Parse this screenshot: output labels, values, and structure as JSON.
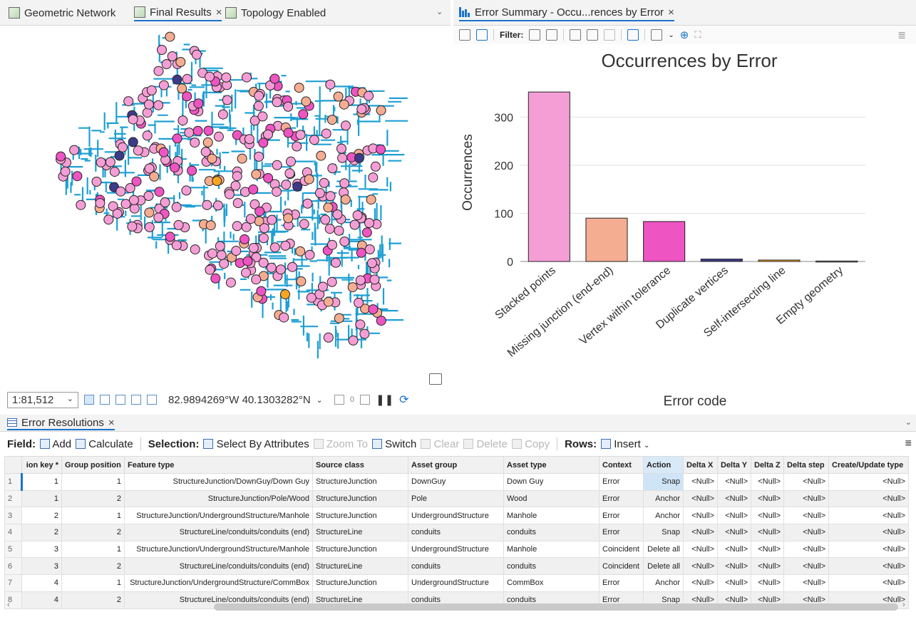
{
  "map_tabs": [
    {
      "label": "Geometric Network"
    },
    {
      "label": "Final Results",
      "close": "×"
    },
    {
      "label": "Topology Enabled"
    }
  ],
  "chart_tab": {
    "label": "Error Summary - Occu...rences by Error",
    "close": "×"
  },
  "chart_toolbar": {
    "filter_label": "Filter:"
  },
  "map_status": {
    "scale": "1:81,512",
    "coordinates": "82.9894269°W 40.1303282°N",
    "count": "0"
  },
  "colors": {
    "network": "#1ea0d4",
    "stacked_points": "#f59ed6",
    "missing_junction": "#f5ad92",
    "vertex_within_tolerance": "#ee54c2",
    "duplicate_vertices": "#3e3a8a",
    "self_intersecting": "#f6a623",
    "empty_geometry": "#999999"
  },
  "chart_data": {
    "type": "bar",
    "title": "Occurrences by Error",
    "xlabel": "Error code",
    "ylabel": "Occurrences",
    "categories": [
      "Stacked points",
      "Missing junction (end-end)",
      "Vertex within tolerance",
      "Duplicate vertices",
      "Self-intersecting line",
      "Empty geometry"
    ],
    "values": [
      352,
      90,
      83,
      5,
      3,
      1
    ],
    "yticks": [
      0,
      100,
      200,
      300
    ],
    "ylim": [
      0,
      370
    ],
    "grid": true
  },
  "table_tab": {
    "label": "Error Resolutions",
    "close": "×"
  },
  "table_toolbar": {
    "field_label": "Field:",
    "add": "Add",
    "calculate": "Calculate",
    "selection_label": "Selection:",
    "select_by_attributes": "Select By Attributes",
    "zoom_to": "Zoom To",
    "switch": "Switch",
    "clear": "Clear",
    "delete": "Delete",
    "copy": "Copy",
    "rows_label": "Rows:",
    "insert": "Insert"
  },
  "table": {
    "columns": [
      "ion key *",
      "Group position",
      "Feature type",
      "Source class",
      "Asset group",
      "Asset type",
      "Context",
      "Action",
      "Delta X",
      "Delta Y",
      "Delta Z",
      "Delta step",
      "Create/Update type"
    ],
    "rows": [
      [
        "1",
        "1",
        "1",
        "StructureJunction/DownGuy/Down Guy",
        "StructureJunction",
        "DownGuy",
        "Down Guy",
        "Error",
        "Snap",
        "<Null>",
        "<Null>",
        "<Null>",
        "<Null>",
        "<Null>"
      ],
      [
        "2",
        "1",
        "2",
        "StructureJunction/Pole/Wood",
        "StructureJunction",
        "Pole",
        "Wood",
        "Error",
        "Anchor",
        "<Null>",
        "<Null>",
        "<Null>",
        "<Null>",
        "<Null>"
      ],
      [
        "3",
        "2",
        "1",
        "StructureJunction/UndergroundStructure/Manhole",
        "StructureJunction",
        "UndergroundStructure",
        "Manhole",
        "Error",
        "Anchor",
        "<Null>",
        "<Null>",
        "<Null>",
        "<Null>",
        "<Null>"
      ],
      [
        "4",
        "2",
        "2",
        "StructureLine/conduits/conduits (end)",
        "StructureLine",
        "conduits",
        "conduits",
        "Error",
        "Snap",
        "<Null>",
        "<Null>",
        "<Null>",
        "<Null>",
        "<Null>"
      ],
      [
        "5",
        "3",
        "1",
        "StructureJunction/UndergroundStructure/Manhole",
        "StructureJunction",
        "UndergroundStructure",
        "Manhole",
        "Coincident",
        "Delete all",
        "<Null>",
        "<Null>",
        "<Null>",
        "<Null>",
        "<Null>"
      ],
      [
        "6",
        "3",
        "2",
        "StructureLine/conduits/conduits (end)",
        "StructureLine",
        "conduits",
        "conduits",
        "Coincident",
        "Delete all",
        "<Null>",
        "<Null>",
        "<Null>",
        "<Null>",
        "<Null>"
      ],
      [
        "7",
        "4",
        "1",
        "StructureJunction/UndergroundStructure/CommBox",
        "StructureJunction",
        "UndergroundStructure",
        "CommBox",
        "Error",
        "Anchor",
        "<Null>",
        "<Null>",
        "<Null>",
        "<Null>",
        "<Null>"
      ],
      [
        "8",
        "4",
        "2",
        "StructureLine/conduits/conduits (end)",
        "StructureLine",
        "conduits",
        "conduits",
        "Error",
        "Snap",
        "<Null>",
        "<Null>",
        "<Null>",
        "<Null>",
        "<Null>"
      ]
    ]
  }
}
